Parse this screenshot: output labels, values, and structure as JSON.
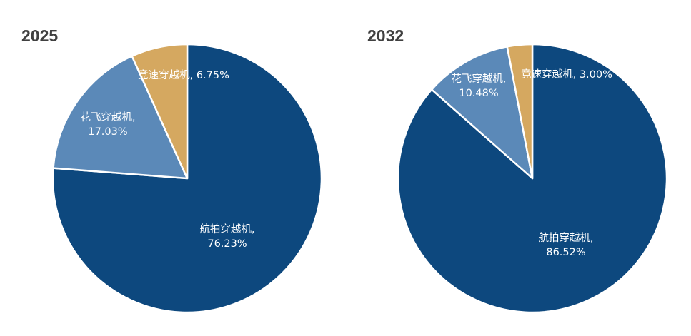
{
  "chart_data": [
    {
      "type": "pie",
      "title": "2025",
      "slices": [
        {
          "name": "航拍穿越机",
          "value": 76.23,
          "label_lines": [
            "航拍穿越机,",
            "76.23%"
          ],
          "color": "#0D487E"
        },
        {
          "name": "花飞穿越机",
          "value": 17.03,
          "label_lines": [
            "花飞穿越机,",
            "17.03%"
          ],
          "color": "#5B89B8"
        },
        {
          "name": "竞速穿越机",
          "value": 6.75,
          "label_lines": [
            "竞速穿越机, 6.75%"
          ],
          "color": "#D5A860"
        }
      ]
    },
    {
      "type": "pie",
      "title": "2032",
      "slices": [
        {
          "name": "航拍穿越机",
          "value": 86.52,
          "label_lines": [
            "航拍穿越机,",
            "86.52%"
          ],
          "color": "#0D487E"
        },
        {
          "name": "花飞穿越机",
          "value": 10.48,
          "label_lines": [
            "花飞穿越机,",
            "10.48%"
          ],
          "color": "#5B89B8"
        },
        {
          "name": "竞速穿越机",
          "value": 3.0,
          "label_lines": [
            "竞速穿越机, 3.00%"
          ],
          "color": "#D5A860"
        }
      ]
    }
  ]
}
